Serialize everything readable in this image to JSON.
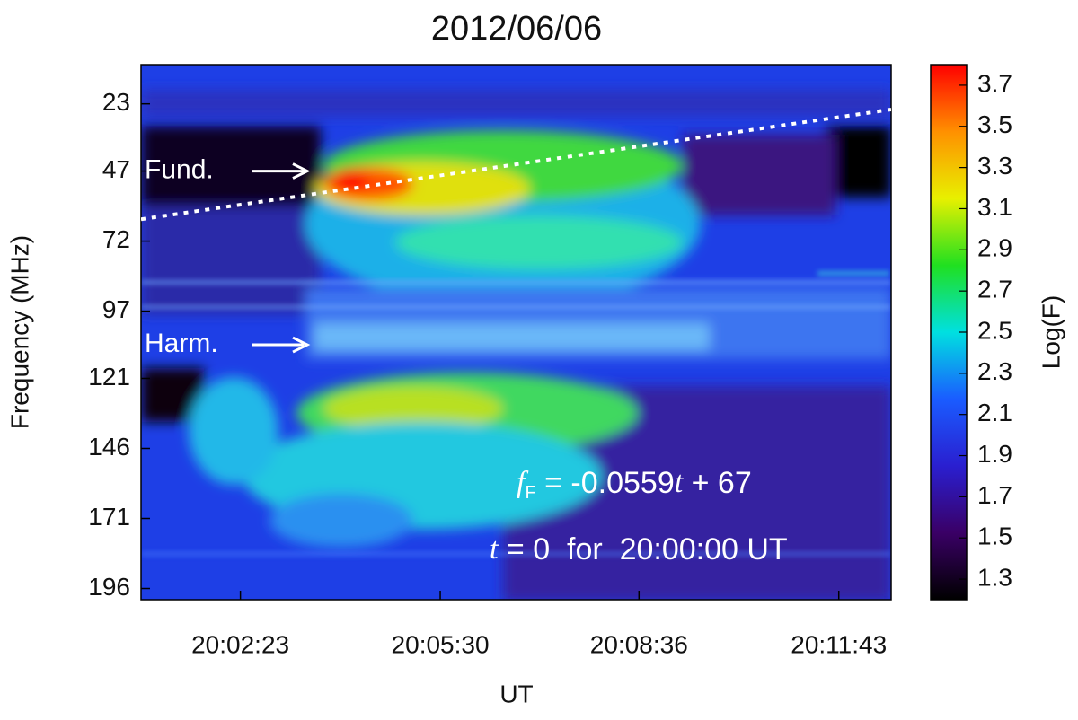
{
  "chart_data": {
    "type": "spectrogram",
    "title": "2012/06/06",
    "x_label": "UT",
    "y_label": "Frequency (MHz)",
    "colorbar_label": "Log(F)",
    "xlim": [
      50,
      752
    ],
    "xticks": [
      {
        "value": 143,
        "label": "20:02:23"
      },
      {
        "value": 330,
        "label": "20:05:30"
      },
      {
        "value": 516,
        "label": "20:08:36"
      },
      {
        "value": 703,
        "label": "20:11:43"
      }
    ],
    "ylim": [
      9,
      200
    ],
    "y_inverted": true,
    "yticks": [
      23,
      47,
      72,
      97,
      121,
      146,
      171,
      196
    ],
    "clim": [
      1.2,
      3.8
    ],
    "cticks": [
      1.3,
      1.5,
      1.7,
      1.9,
      2.1,
      2.3,
      2.5,
      2.7,
      2.9,
      3.1,
      3.3,
      3.5,
      3.7
    ],
    "colormap": [
      "#000000",
      "#3a0066",
      "#2a1fd0",
      "#1a5cff",
      "#00e0e0",
      "#20e020",
      "#e8f000",
      "#ff9000",
      "#ff0000"
    ],
    "fit_line": {
      "x": [
        50,
        752
      ],
      "values": [
        64.2,
        25.0
      ],
      "color": "#ffffff"
    },
    "markers": [
      {
        "text": "Fund.",
        "y": 47
      },
      {
        "text": "Harm.",
        "y": 109
      }
    ],
    "fit_label": [
      "f",
      "F",
      " = -0.0559",
      "t",
      " + 67"
    ],
    "time_label": [
      "t",
      " = 0  for  20:00:00 UT"
    ]
  }
}
